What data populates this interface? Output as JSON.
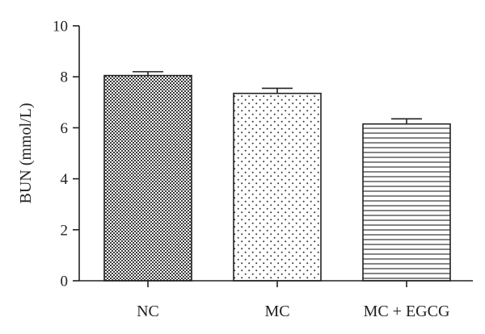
{
  "chart_data": {
    "type": "bar",
    "title": "",
    "xlabel": "",
    "ylabel": "BUN (mmol/L)",
    "ylim": [
      0,
      10
    ],
    "yticks": [
      0,
      2,
      4,
      6,
      8,
      10
    ],
    "categories": [
      "NC",
      "MC",
      "MC + EGCG"
    ],
    "values": [
      8.05,
      7.35,
      6.15
    ],
    "errors": [
      0.15,
      0.2,
      0.2
    ],
    "patterns": [
      "crosshatch-dense",
      "dots",
      "horizontal-lines"
    ],
    "grid": false,
    "legend": "none"
  }
}
